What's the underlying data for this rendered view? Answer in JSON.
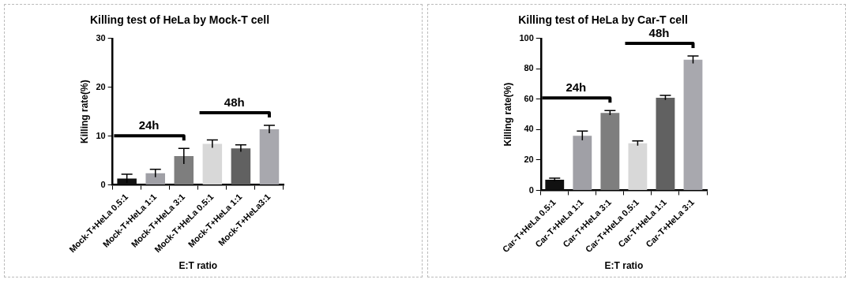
{
  "chart_data": [
    {
      "type": "bar",
      "title": "Killing test of HeLa by Mock-T cell",
      "xlabel": "E:T ratio",
      "ylabel": "Killing rate(%)",
      "categories": [
        "Mock-T+HeLa 0.5:1",
        "Mock-T+HeLa 1:1",
        "Mock-T+HeLa 3:1",
        "Mock-T+HeLa 0.5:1",
        "Mock-T+HeLa 1:1",
        "Mock-T+HeLa3:1"
      ],
      "values": [
        1.3,
        2.4,
        5.9,
        8.4,
        7.5,
        11.4
      ],
      "errors": [
        0.9,
        0.8,
        1.6,
        0.8,
        0.7,
        0.8
      ],
      "colors": [
        "#111111",
        "#a0a0a6",
        "#7e7e7e",
        "#d8d8d8",
        "#616161",
        "#a8a8ae"
      ],
      "ylim": [
        0,
        30
      ],
      "yticks": [
        0,
        10,
        20,
        30
      ],
      "grid": false,
      "legend": false,
      "annotations": [
        "24h",
        "48h"
      ]
    },
    {
      "type": "bar",
      "title": "Killing test of HeLa by Car-T cell",
      "xlabel": "E:T ratio",
      "ylabel": "Killing rate(%)",
      "categories": [
        "Car-T+HeLa 0.5:1",
        "Car-T+HeLa 1:1",
        "Car-T+HeLa 3:1",
        "Car-T+HeLa 0.5:1",
        "Car-T+HeLa 1:1",
        "Car-T+HeLa 3:1"
      ],
      "values": [
        7,
        36,
        51,
        31,
        61,
        86
      ],
      "errors": [
        1,
        3,
        1.5,
        1.5,
        1.5,
        2.5
      ],
      "colors": [
        "#111111",
        "#a0a0a6",
        "#7e7e7e",
        "#d8d8d8",
        "#616161",
        "#a8a8ae"
      ],
      "ylim": [
        0,
        100
      ],
      "yticks": [
        0,
        20,
        40,
        60,
        80,
        100
      ],
      "grid": false,
      "legend": false,
      "annotations": [
        "24h",
        "48h"
      ]
    }
  ]
}
